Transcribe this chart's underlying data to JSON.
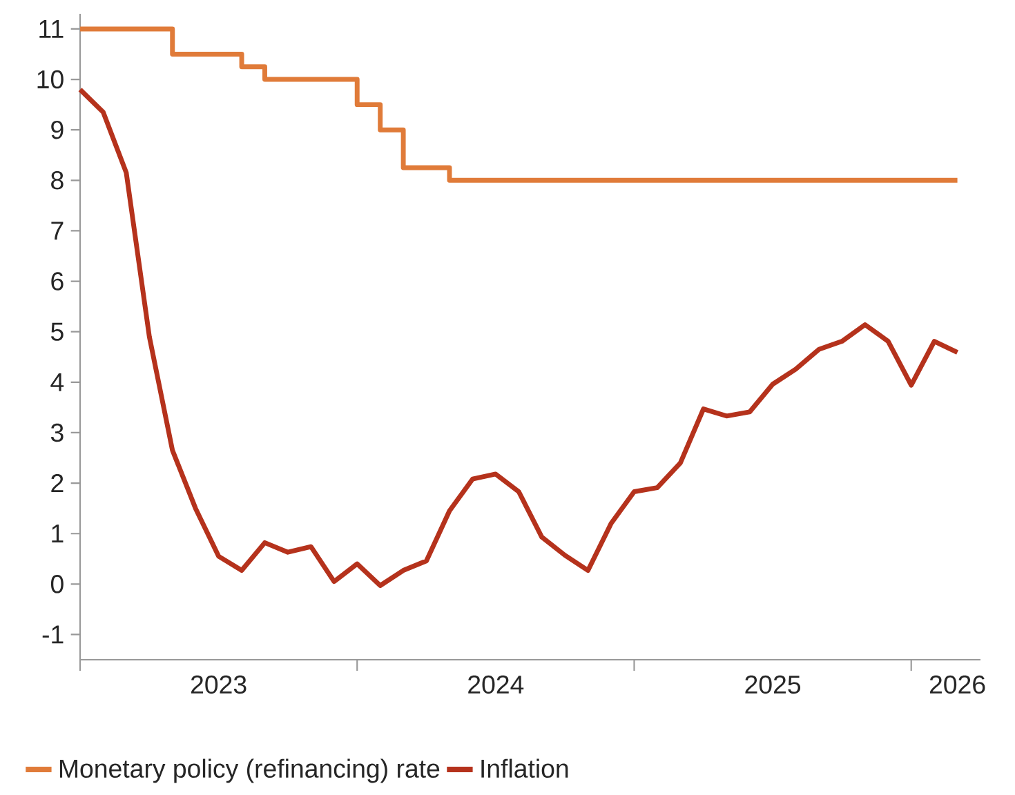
{
  "chart_data": {
    "type": "line",
    "x": [
      "2023-01",
      "2023-02",
      "2023-03",
      "2023-04",
      "2023-05",
      "2023-06",
      "2023-07",
      "2023-08",
      "2023-09",
      "2023-10",
      "2023-11",
      "2023-12",
      "2024-01",
      "2024-02",
      "2024-03",
      "2024-04",
      "2024-05",
      "2024-06",
      "2024-07",
      "2024-08",
      "2024-09",
      "2024-10",
      "2024-11",
      "2024-12",
      "2025-01",
      "2025-02",
      "2025-03",
      "2025-04",
      "2025-05",
      "2025-06",
      "2025-07",
      "2025-08",
      "2025-09",
      "2025-10",
      "2025-11",
      "2025-12",
      "2026-01",
      "2026-02",
      "2026-03"
    ],
    "series": [
      {
        "name": "Monetary policy (refinancing) rate",
        "type": "step",
        "color": "#e07b39",
        "x": [
          "2023-01",
          "2023-05",
          "2023-08",
          "2023-09",
          "2024-01",
          "2024-02",
          "2024-03",
          "2024-05",
          "2026-03"
        ],
        "values": [
          11,
          10.5,
          10.25,
          10,
          9.5,
          9,
          8.25,
          8,
          8
        ]
      },
      {
        "name": "Inflation",
        "type": "line",
        "color": "#b5321c",
        "values": [
          9.8,
          9.35,
          8.15,
          4.9,
          2.65,
          1.5,
          0.55,
          0.27,
          0.82,
          0.63,
          0.74,
          0.05,
          0.4,
          -0.03,
          0.27,
          0.46,
          1.45,
          2.08,
          2.18,
          1.83,
          0.93,
          0.57,
          0.27,
          1.2,
          1.83,
          1.91,
          2.4,
          3.47,
          3.33,
          3.41,
          3.96,
          4.26,
          4.65,
          4.81,
          5.14,
          4.81,
          3.94,
          4.81,
          4.59
        ]
      }
    ],
    "xlim": [
      "2023-01",
      "2026-04"
    ],
    "xticks": [
      {
        "value": "2023-01",
        "label": null
      },
      {
        "value": "2023-07",
        "label": "2023"
      },
      {
        "value": "2024-01",
        "label": null
      },
      {
        "value": "2024-07",
        "label": "2024"
      },
      {
        "value": "2025-01",
        "label": null
      },
      {
        "value": "2025-07",
        "label": "2025"
      },
      {
        "value": "2026-01",
        "label": null
      },
      {
        "value": "2026-03",
        "label": "2026"
      }
    ],
    "ylim": [
      -1.5,
      11.3
    ],
    "yticks": [
      -1,
      0,
      1,
      2,
      3,
      4,
      5,
      6,
      7,
      8,
      9,
      10,
      11
    ],
    "legend": "bottom"
  }
}
